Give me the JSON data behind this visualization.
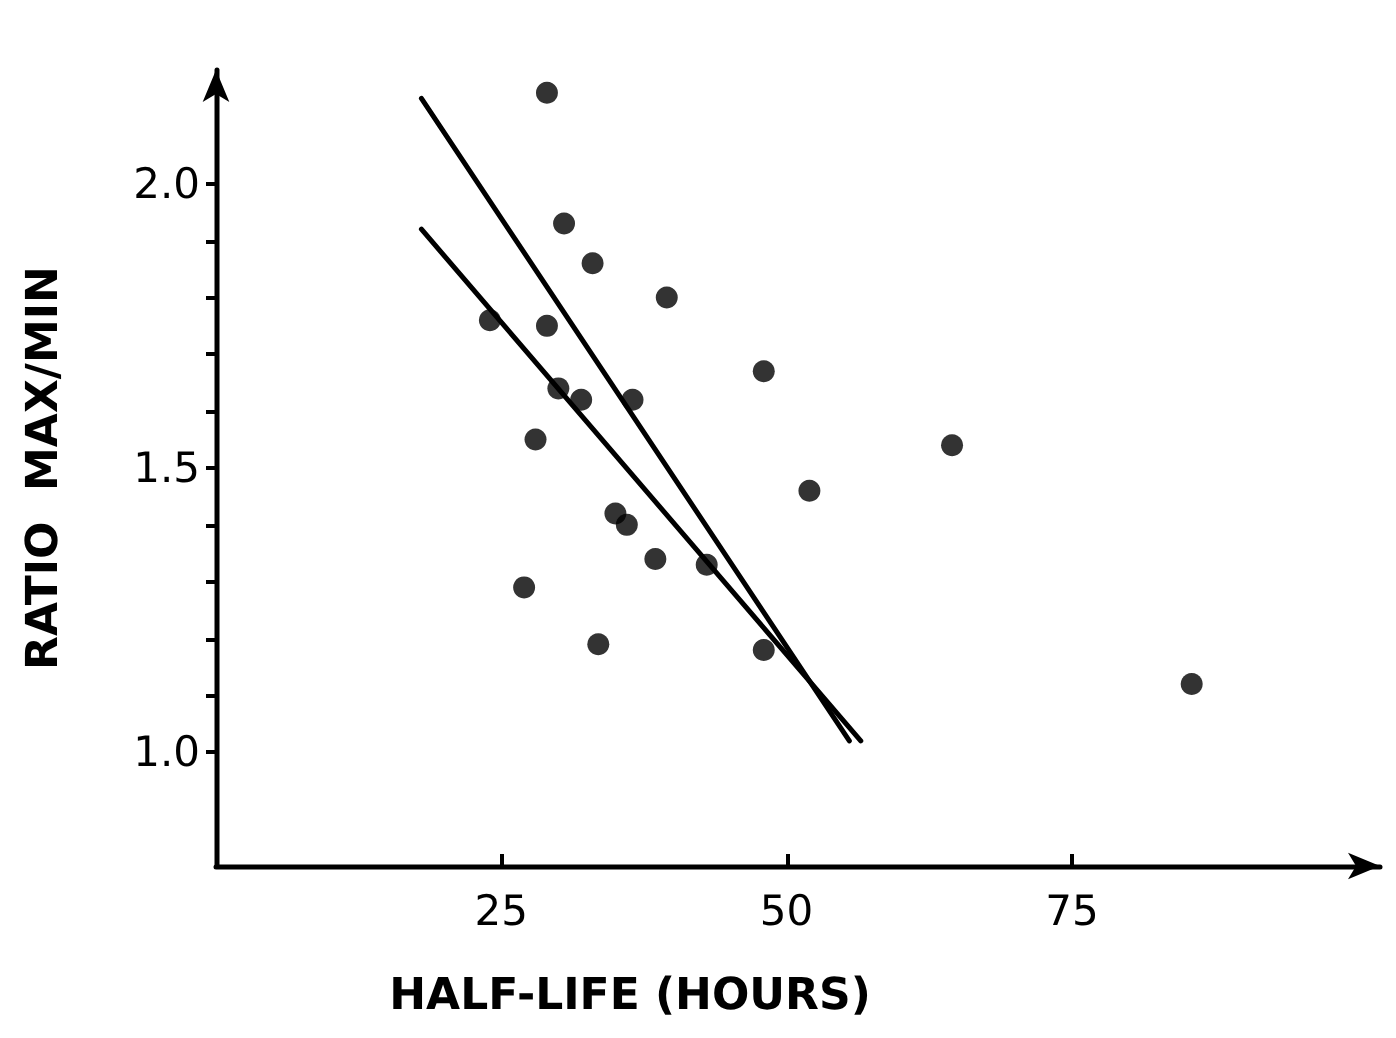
{
  "chart_data": {
    "type": "scatter",
    "xlabel": "HALF-LIFE (HOURS)",
    "ylabel": "RATIO  MAX/MIN",
    "xlim": [
      0,
      102
    ],
    "xticks": [
      25,
      50,
      75
    ],
    "ylim": [
      0.8,
      2.2
    ],
    "yticks": [
      {
        "value": 1,
        "label": "1.0"
      },
      {
        "value": 1.1,
        "label": null
      },
      {
        "value": 1.2,
        "label": null
      },
      {
        "value": 1.3,
        "label": null
      },
      {
        "value": 1.4,
        "label": null
      },
      1.5,
      {
        "value": 1.6,
        "label": null
      },
      {
        "value": 1.7,
        "label": null
      },
      {
        "value": 1.8,
        "label": null
      },
      {
        "value": 1.9,
        "label": null
      },
      {
        "value": 2,
        "label": "2.0"
      }
    ],
    "grid": false,
    "marker": "circle",
    "series": [
      {
        "color": "#000000",
        "x": [
          29,
          30.5,
          33,
          39.5,
          24,
          29,
          48,
          30,
          32,
          36.5,
          28,
          52,
          35,
          36,
          38.5,
          43,
          27,
          33.5,
          48,
          64.5,
          85.5
        ],
        "values": [
          2.16,
          1.93,
          1.86,
          1.8,
          1.76,
          1.75,
          1.67,
          1.64,
          1.62,
          1.62,
          1.55,
          1.46,
          1.42,
          1.4,
          1.34,
          1.33,
          1.29,
          1.19,
          1.18,
          1.54,
          1.12
        ]
      },
      {
        "type": "line",
        "color": "#000000",
        "marker": "none",
        "x": [
          18,
          55.5
        ],
        "values": [
          2.15,
          1.02
        ]
      },
      {
        "type": "line",
        "color": "#000000",
        "marker": "none",
        "x": [
          18,
          56.5
        ],
        "values": [
          1.92,
          1.02
        ]
      }
    ]
  }
}
